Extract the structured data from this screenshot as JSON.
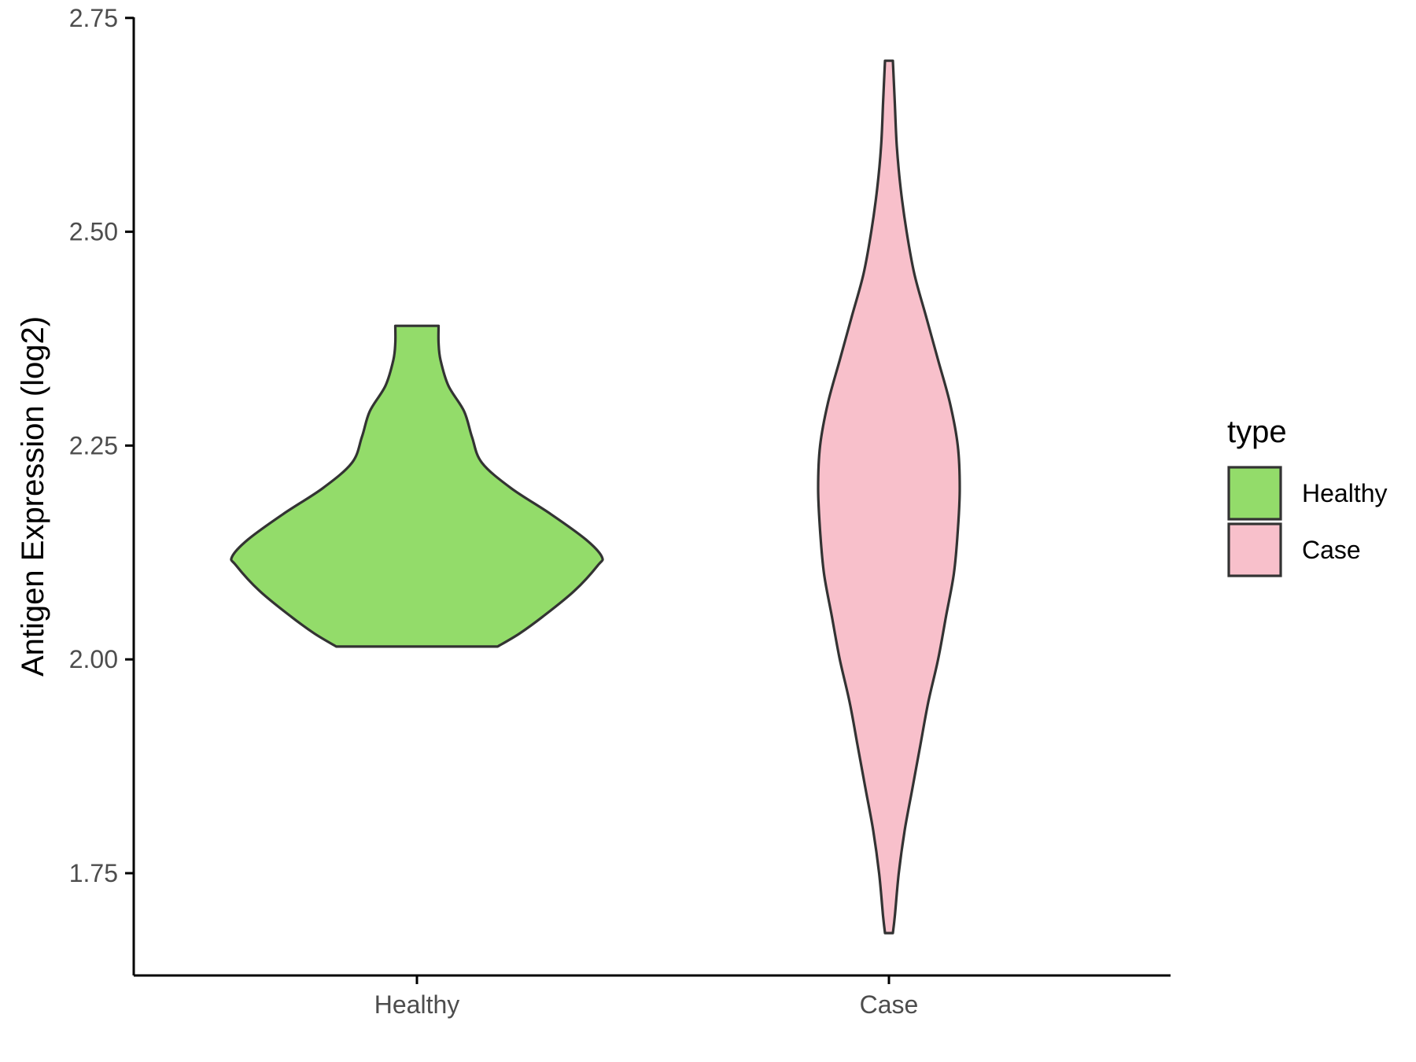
{
  "chart_data": {
    "type": "violin",
    "xlabel": "",
    "ylabel": "Antigen Expression (log2)",
    "ylim": [
      1.63,
      2.75
    ],
    "yticks": [
      1.75,
      2.0,
      2.25,
      2.5,
      2.75
    ],
    "ytick_labels": [
      "1.75",
      "2.00",
      "2.25",
      "2.50",
      "2.75"
    ],
    "categories": [
      "Healthy",
      "Case"
    ],
    "grid": false,
    "legend": {
      "title": "type",
      "position": "right",
      "entries": [
        {
          "label": "Healthy",
          "color": "#93DC6A"
        },
        {
          "label": "Case",
          "color": "#F8C0CB"
        }
      ]
    },
    "series": [
      {
        "category": "Healthy",
        "color": "#93DC6A",
        "min": 2.015,
        "max": 2.39,
        "density_profile": [
          [
            2.015,
            0.41
          ],
          [
            2.03,
            0.52
          ],
          [
            2.05,
            0.64
          ],
          [
            2.08,
            0.8
          ],
          [
            2.11,
            0.92
          ],
          [
            2.12,
            0.94
          ],
          [
            2.14,
            0.86
          ],
          [
            2.17,
            0.68
          ],
          [
            2.2,
            0.48
          ],
          [
            2.23,
            0.33
          ],
          [
            2.26,
            0.28
          ],
          [
            2.29,
            0.24
          ],
          [
            2.32,
            0.16
          ],
          [
            2.35,
            0.12
          ],
          [
            2.37,
            0.11
          ],
          [
            2.39,
            0.11
          ]
        ]
      },
      {
        "category": "Case",
        "color": "#F8C0CB",
        "min": 1.68,
        "max": 2.7,
        "density_profile": [
          [
            1.68,
            0.02
          ],
          [
            1.7,
            0.03
          ],
          [
            1.75,
            0.05
          ],
          [
            1.8,
            0.08
          ],
          [
            1.85,
            0.12
          ],
          [
            1.9,
            0.16
          ],
          [
            1.95,
            0.2
          ],
          [
            2.0,
            0.25
          ],
          [
            2.05,
            0.29
          ],
          [
            2.1,
            0.33
          ],
          [
            2.15,
            0.35
          ],
          [
            2.2,
            0.36
          ],
          [
            2.25,
            0.35
          ],
          [
            2.3,
            0.31
          ],
          [
            2.35,
            0.25
          ],
          [
            2.4,
            0.19
          ],
          [
            2.45,
            0.13
          ],
          [
            2.5,
            0.09
          ],
          [
            2.55,
            0.06
          ],
          [
            2.6,
            0.04
          ],
          [
            2.65,
            0.03
          ],
          [
            2.7,
            0.02
          ]
        ]
      }
    ]
  }
}
